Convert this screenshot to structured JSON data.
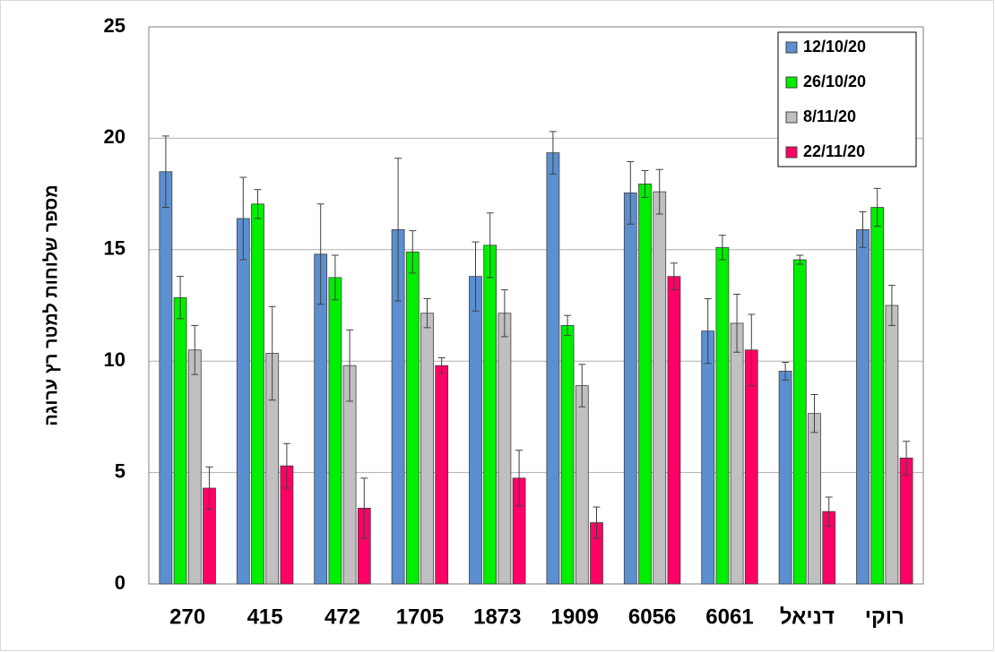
{
  "chart_data": {
    "type": "bar",
    "y_label": "מספר שלוחות למטר רץ ערוגה",
    "categories": [
      "270",
      "415",
      "472",
      "1705",
      "1873",
      "1909",
      "6056",
      "6061",
      "דניאל",
      "רוקי"
    ],
    "series": [
      {
        "name": "12/10/20",
        "color": "#5b8fd0",
        "values": [
          18.5,
          16.4,
          14.8,
          15.9,
          13.8,
          19.35,
          17.55,
          11.35,
          9.55,
          15.9
        ],
        "errors": [
          1.6,
          1.85,
          2.25,
          3.2,
          1.55,
          0.95,
          1.4,
          1.45,
          0.4,
          0.8
        ]
      },
      {
        "name": "26/10/20",
        "color": "#00ee00",
        "values": [
          12.85,
          17.05,
          13.75,
          14.9,
          15.2,
          11.6,
          17.95,
          15.1,
          14.55,
          16.9
        ],
        "errors": [
          0.95,
          0.65,
          1.0,
          0.95,
          1.45,
          0.45,
          0.6,
          0.55,
          0.2,
          0.85
        ]
      },
      {
        "name": "8/11/20",
        "color": "#c0c0c0",
        "values": [
          10.5,
          10.35,
          9.8,
          12.15,
          12.15,
          8.9,
          17.6,
          11.7,
          7.65,
          12.5
        ],
        "errors": [
          1.1,
          2.1,
          1.6,
          0.65,
          1.05,
          0.95,
          1.0,
          1.3,
          0.85,
          0.9
        ]
      },
      {
        "name": "22/11/20",
        "color": "#ff0066",
        "values": [
          4.3,
          5.3,
          3.4,
          9.8,
          4.75,
          2.75,
          13.8,
          10.5,
          3.25,
          5.65
        ],
        "errors": [
          0.95,
          1.0,
          1.35,
          0.35,
          1.25,
          0.7,
          0.6,
          1.6,
          0.65,
          0.75
        ]
      }
    ],
    "ylim": [
      0,
      25
    ],
    "yticks": [
      0,
      5,
      10,
      15,
      20,
      25
    ],
    "grid": true,
    "legend": "top-right"
  }
}
